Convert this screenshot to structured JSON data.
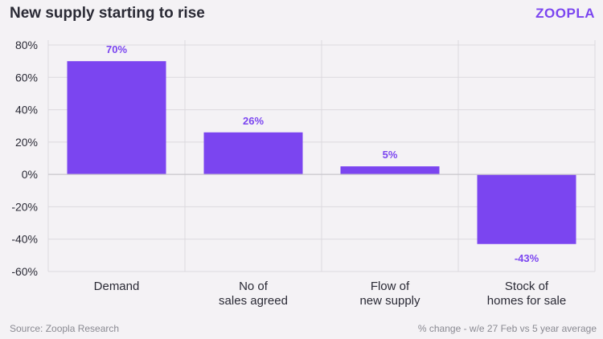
{
  "header": {
    "title": "New supply starting to rise",
    "brand": "ZOOPLA"
  },
  "footer": {
    "source": "Source: Zoopla Research",
    "note": "% change - w/e 27 Feb vs 5 year average"
  },
  "colors": {
    "bar": "#7b45f0",
    "label": "#7b45f0",
    "grid": "#dcd9de",
    "zero_line": "#c9c6cc",
    "text": "#2a2a35"
  },
  "chart_data": {
    "type": "bar",
    "title": "New supply starting to rise",
    "categories": [
      [
        "Demand"
      ],
      [
        "No of",
        "sales agreed"
      ],
      [
        "Flow of",
        "new supply"
      ],
      [
        "Stock of",
        "homes for sale"
      ]
    ],
    "values": [
      70,
      26,
      5,
      -43
    ],
    "data_labels": [
      "70%",
      "26%",
      "5%",
      "-43%"
    ],
    "ylim": [
      -60,
      80
    ],
    "yticks": [
      80,
      60,
      40,
      20,
      0,
      -20,
      -40,
      -60
    ],
    "ytick_labels": [
      "80%",
      "60%",
      "40%",
      "20%",
      "0%",
      "-20%",
      "-40%",
      "-60%"
    ],
    "xlabel": "",
    "ylabel": ""
  }
}
